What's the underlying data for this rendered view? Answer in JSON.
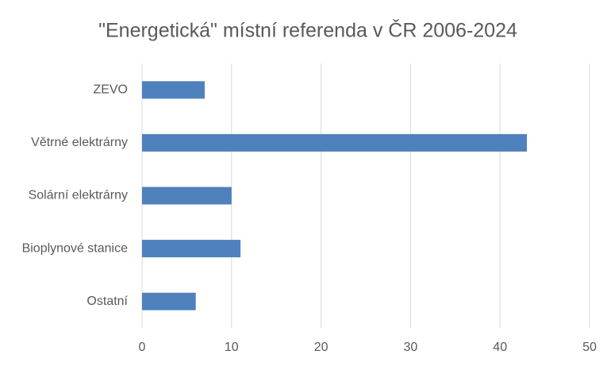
{
  "chart_data": {
    "type": "hbar",
    "title": "\"Energetická\" místní referenda v ČR 2006-2024",
    "categories": [
      "ZEVO",
      "Větrné elektrárny",
      "Solární elektrárny",
      "Bioplynové stanice",
      "Ostatní"
    ],
    "values": [
      7,
      43,
      10,
      11,
      6
    ],
    "color": "#4f81bd",
    "xlim": [
      0,
      50
    ],
    "xticks": [
      0,
      10,
      20,
      30,
      40,
      50
    ],
    "grid": true
  }
}
